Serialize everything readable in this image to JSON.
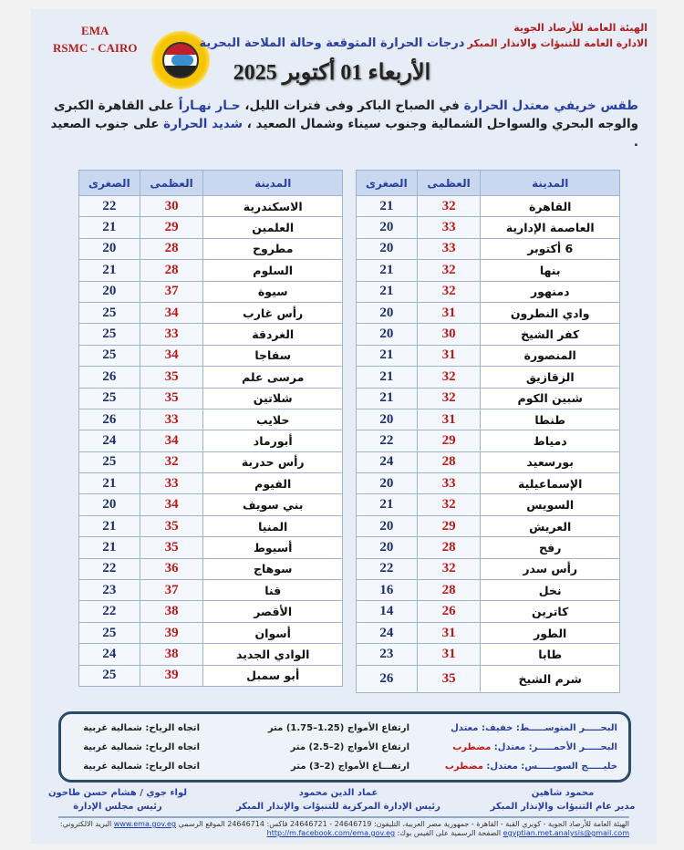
{
  "header": {
    "org_line1": "الهيئة العامة للأرصاد الجوية",
    "org_line2": "الادارة العامة للتنبؤات والانذار المبكر",
    "ema": "EMA",
    "rsmc": "RSMC - CAIRO",
    "subtitle": "درجات الحرارة المتوقعة وحالة الملاحة البحرية",
    "date": "الأربعاء 01 أكتوبر 2025"
  },
  "summary": {
    "p1": "طقس خريفي معتدل الحرارة",
    "p2": " في الصباح الباكر وفى فترات الليل، ",
    "p3": "حـار نهـاراً",
    "p4": " على القاهرة الكبرى والوجه البحري والسواحل الشمالية وجنوب سيناء وشمال الصعيد ، ",
    "p5": "شديد الحرارة",
    "p6": " على جنوب الصعيد ."
  },
  "table_headers": {
    "city": "المدينة",
    "max": "العظمى",
    "min": "الصغرى"
  },
  "right_table": [
    [
      "القاهرة",
      "32",
      "21"
    ],
    [
      "العاصمة الإدارية",
      "33",
      "20"
    ],
    [
      "6 أكتوبر",
      "33",
      "20"
    ],
    [
      "بنها",
      "32",
      "21"
    ],
    [
      "دمنهور",
      "32",
      "21"
    ],
    [
      "وادي النطرون",
      "31",
      "20"
    ],
    [
      "كفر الشيخ",
      "30",
      "20"
    ],
    [
      "المنصورة",
      "31",
      "21"
    ],
    [
      "الزقازيق",
      "32",
      "21"
    ],
    [
      "شبين الكوم",
      "32",
      "21"
    ],
    [
      "طنطا",
      "31",
      "20"
    ],
    [
      "دمياط",
      "29",
      "22"
    ],
    [
      "بورسعيد",
      "28",
      "24"
    ],
    [
      "الإسماعيلية",
      "33",
      "20"
    ],
    [
      "السويس",
      "32",
      "21"
    ],
    [
      "العريش",
      "29",
      "20"
    ],
    [
      "رفح",
      "28",
      "20"
    ],
    [
      "رأس سدر",
      "32",
      "22"
    ],
    [
      "نخل",
      "28",
      "16"
    ],
    [
      "كاترين",
      "26",
      "14"
    ],
    [
      "الطور",
      "31",
      "24"
    ],
    [
      "طابا",
      "31",
      "23"
    ],
    [
      "شرم الشيخ",
      "35",
      "26"
    ]
  ],
  "left_table": [
    [
      "الاسكندرية",
      "30",
      "22"
    ],
    [
      "العلمين",
      "29",
      "21"
    ],
    [
      "مطروح",
      "28",
      "20"
    ],
    [
      "السلوم",
      "28",
      "21"
    ],
    [
      "سيوة",
      "37",
      "20"
    ],
    [
      "رأس غارب",
      "34",
      "25"
    ],
    [
      "الغردقة",
      "33",
      "25"
    ],
    [
      "سفاجا",
      "34",
      "25"
    ],
    [
      "مرسى علم",
      "35",
      "26"
    ],
    [
      "شلاتين",
      "35",
      "25"
    ],
    [
      "حلايب",
      "33",
      "26"
    ],
    [
      "أبورماد",
      "34",
      "24"
    ],
    [
      "رأس حدربة",
      "32",
      "25"
    ],
    [
      "الفيوم",
      "33",
      "21"
    ],
    [
      "بني سويف",
      "34",
      "20"
    ],
    [
      "المنيا",
      "35",
      "21"
    ],
    [
      "أسيوط",
      "35",
      "21"
    ],
    [
      "سوهاج",
      "36",
      "22"
    ],
    [
      "قنا",
      "37",
      "23"
    ],
    [
      "الأقصر",
      "38",
      "22"
    ],
    [
      "أسوان",
      "39",
      "25"
    ],
    [
      "الوادي الجديد",
      "38",
      "24"
    ],
    [
      "أبو سمبل",
      "39",
      "25"
    ]
  ],
  "sea": [
    {
      "name": "البحـــــر المتوســـــط: خفيف: معتدل",
      "state_alert": "",
      "waves": "ارتفاع الأمواج (1.25–1.75) متر",
      "wind": "اتجاه الرياح: شمالية غربية"
    },
    {
      "name": "البحـــــر الأحمـــــر: معتدل: ",
      "state_alert": "مضطرب",
      "waves": "ارتفاع الأمواج (2–2.5) متر",
      "wind": "اتجاه الرياح: شمالية غربية"
    },
    {
      "name": "خليـــــج السويـــــس: معتدل: ",
      "state_alert": "مضطرب",
      "waves": "ارتفـــاع الأمواج (2–3) متر",
      "wind": "اتجاه الرياح: شمالية غربية"
    }
  ],
  "signatures": [
    {
      "name": "محمود شاهين",
      "title": "مدير عام التنبؤات والإنذار المبكر"
    },
    {
      "name": "عماد الدين محمود",
      "title": "رئيس الإدارة المركزية للتنبؤات والإنذار المبكر"
    },
    {
      "name": "لواء جوي / هشام حسن طاحون",
      "title": "رئيس مجلس الإدارة"
    }
  ],
  "footer": {
    "text": "الهيئة العامة للأرصاد الجوية - كوبري القبة - القاهرة - جمهورية مصر العربية، التليفون: 24646719 - 24646721 فاكس: 24646714 الموقع الرسمي",
    "site": "www.ema.gov.eg",
    "email_label": " البريد الالكتروني: ",
    "email": "egyptian.met.analysis@gmail.com",
    "fb_label": " الصفحة الرسمية على الفيس بوك: ",
    "fb": "http://m.facebook.com/ema.gov.eg"
  },
  "colors": {
    "accent_blue": "#2a3fa0",
    "max_red": "#c01818",
    "alert_red": "#c01818"
  }
}
